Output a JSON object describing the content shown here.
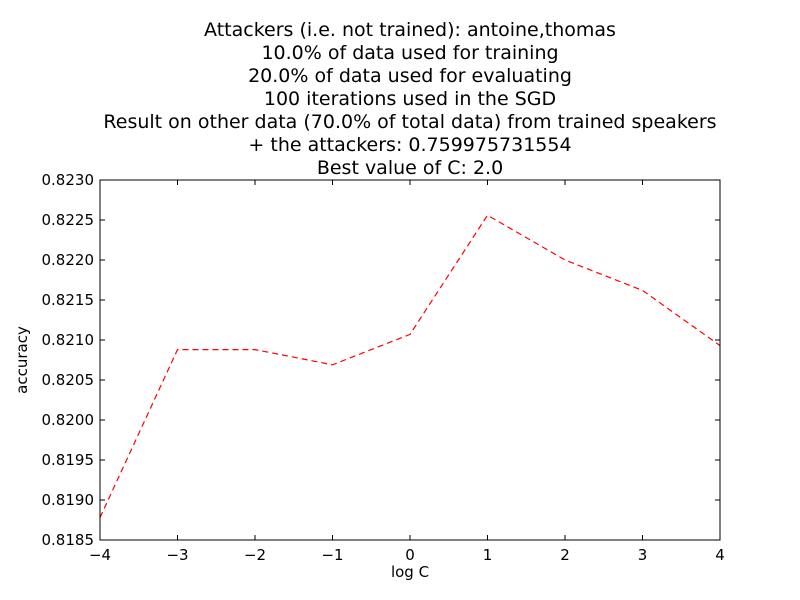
{
  "chart_data": {
    "type": "line",
    "title_lines": [
      "Attackers (i.e. not trained): antoine,thomas",
      "10.0% of data used for training",
      "20.0% of data used for evaluating",
      "100 iterations used in the SGD",
      "Result on other data (70.0% of total data) from trained speakers",
      "+ the attackers: 0.759975731554",
      "Best value of C: 2.0"
    ],
    "xlabel": "log C",
    "ylabel": "accuracy",
    "xlim": [
      -4,
      4
    ],
    "ylim": [
      0.8185,
      0.823
    ],
    "xticks": [
      -4,
      -3,
      -2,
      -1,
      0,
      1,
      2,
      3,
      4
    ],
    "xtick_labels": [
      "−4",
      "−3",
      "−2",
      "−1",
      "0",
      "1",
      "2",
      "3",
      "4"
    ],
    "yticks": [
      0.8185,
      0.819,
      0.8195,
      0.82,
      0.8205,
      0.821,
      0.8215,
      0.822,
      0.8225,
      0.823
    ],
    "ytick_labels": [
      "0.8185",
      "0.8190",
      "0.8195",
      "0.8200",
      "0.8205",
      "0.8210",
      "0.8215",
      "0.8220",
      "0.8225",
      "0.8230"
    ],
    "grid": false,
    "series": [
      {
        "color": "#ff0000",
        "line_style": "dashed",
        "x": [
          -4,
          -3,
          -2,
          -1,
          0,
          1,
          2,
          3,
          4
        ],
        "y": [
          0.81878,
          0.82088,
          0.82088,
          0.82069,
          0.82107,
          0.82256,
          0.822,
          0.82162,
          0.82093
        ]
      }
    ]
  }
}
